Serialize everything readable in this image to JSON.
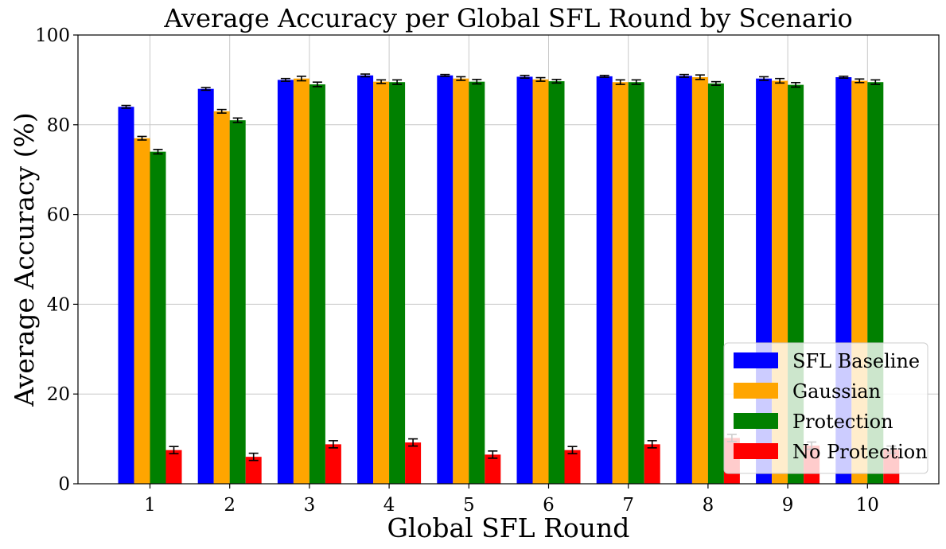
{
  "chart_data": {
    "type": "bar",
    "title": "Average Accuracy per Global SFL Round by Scenario",
    "xlabel": "Global SFL Round",
    "ylabel": "Average Accuracy (%)",
    "categories": [
      "1",
      "2",
      "3",
      "4",
      "5",
      "6",
      "7",
      "8",
      "9",
      "10"
    ],
    "ylim": [
      0,
      100
    ],
    "yticks": [
      "0",
      "20",
      "40",
      "60",
      "80",
      "100"
    ],
    "grid": true,
    "legend_position": "lower right",
    "series": [
      {
        "name": "SFL Baseline",
        "color": "#0000ff",
        "values": [
          84.0,
          88.0,
          90.0,
          91.0,
          91.0,
          90.7,
          90.8,
          90.9,
          90.3,
          90.6
        ],
        "errors": [
          0.3,
          0.3,
          0.3,
          0.3,
          0.2,
          0.3,
          0.2,
          0.3,
          0.4,
          0.2
        ]
      },
      {
        "name": "Gaussian",
        "color": "#ffa500",
        "values": [
          77.0,
          83.0,
          90.3,
          89.6,
          90.3,
          90.1,
          89.5,
          90.6,
          89.8,
          89.8
        ],
        "errors": [
          0.4,
          0.4,
          0.5,
          0.4,
          0.4,
          0.4,
          0.5,
          0.5,
          0.5,
          0.4
        ]
      },
      {
        "name": "Protection",
        "color": "#008000",
        "values": [
          74.0,
          81.0,
          89.0,
          89.5,
          89.6,
          89.7,
          89.5,
          89.2,
          88.9,
          89.5
        ],
        "errors": [
          0.5,
          0.5,
          0.5,
          0.5,
          0.5,
          0.4,
          0.5,
          0.4,
          0.5,
          0.5
        ]
      },
      {
        "name": "No Protection",
        "color": "#ff0000",
        "values": [
          7.5,
          6.0,
          8.8,
          9.2,
          6.5,
          7.5,
          8.8,
          10.2,
          8.5,
          7.6
        ],
        "errors": [
          0.8,
          0.8,
          0.8,
          0.8,
          0.8,
          0.8,
          0.8,
          0.8,
          0.8,
          0.8
        ]
      }
    ]
  }
}
